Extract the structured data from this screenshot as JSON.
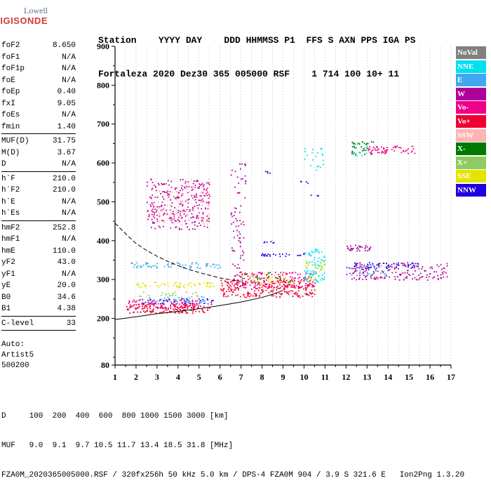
{
  "logo": {
    "line1": "Lowell",
    "line2": "DIGISONDE"
  },
  "header": {
    "line1": "Station    YYYY DAY    DDD HHMMSS P1  FFS S AXN PPS IGA PS",
    "line2": "Fortaleza 2020 Dez30 365 005000 RSF    1 714 100 10+ 11"
  },
  "params": {
    "group1": [
      {
        "k": "foF2",
        "v": "8.650"
      },
      {
        "k": "foF1",
        "v": "N/A"
      },
      {
        "k": "foF1p",
        "v": "N/A"
      },
      {
        "k": "foE",
        "v": "N/A"
      },
      {
        "k": "foEp",
        "v": "0.40"
      },
      {
        "k": "fxI",
        "v": "9.05"
      },
      {
        "k": "foEs",
        "v": "N/A"
      },
      {
        "k": "fmin",
        "v": "1.40"
      }
    ],
    "group2": [
      {
        "k": "MUF(D)",
        "v": "31.75"
      },
      {
        "k": "M(D)",
        "v": "3.67"
      },
      {
        "k": "D",
        "v": "N/A"
      }
    ],
    "group3": [
      {
        "k": "h`F",
        "v": "210.0"
      },
      {
        "k": "h`F2",
        "v": "210.0"
      },
      {
        "k": "h`E",
        "v": "N/A"
      },
      {
        "k": "h`Es",
        "v": "N/A"
      }
    ],
    "group4": [
      {
        "k": "hmF2",
        "v": "252.8"
      },
      {
        "k": "hmF1",
        "v": "N/A"
      },
      {
        "k": "hmE",
        "v": "110.0"
      },
      {
        "k": "yF2",
        "v": "43.0"
      },
      {
        "k": "yF1",
        "v": "N/A"
      },
      {
        "k": "yE",
        "v": "20.0"
      },
      {
        "k": "B0",
        "v": "34.6"
      },
      {
        "k": "B1",
        "v": "4.38"
      }
    ],
    "group5": [
      {
        "k": "C-level",
        "v": "33"
      }
    ]
  },
  "auto": {
    "line1": "Auto:",
    "line2": "Artist5",
    "line3": "500200"
  },
  "legend": [
    {
      "label": "NoVal",
      "color": "#808080"
    },
    {
      "label": "NNE",
      "color": "#00e0f0"
    },
    {
      "label": "E",
      "color": "#40a8f0"
    },
    {
      "label": "W",
      "color": "#b0009a"
    },
    {
      "label": "Vo-",
      "color": "#f00088"
    },
    {
      "label": "Vo+",
      "color": "#f00030"
    },
    {
      "label": "SSW",
      "color": "#ffb4b4"
    },
    {
      "label": "X-",
      "color": "#007a00"
    },
    {
      "label": "X+",
      "color": "#8ccc60"
    },
    {
      "label": "SSE",
      "color": "#e4e400"
    },
    {
      "label": "NNW",
      "color": "#2000e0"
    }
  ],
  "footer": {
    "d_line": "D     100  200  400  600  800 1000 1500 3000 [km]",
    "muf_line": "MUF   9.0  9.1  9.7 10.5 11.7 13.4 18.5 31.8 [MHz]",
    "file_line": "FZA0M_2020365005000.RSF / 320fx256h 50 kHz 5.0 km / DPS-4 FZA0M 904 / 3.9 S 321.6 E   Ion2Png 1.3.20"
  },
  "chart_data": {
    "type": "scatter",
    "xlim": [
      1,
      17
    ],
    "ylim": [
      80,
      900
    ],
    "x_ticks": [
      1,
      2,
      3,
      4,
      5,
      6,
      7,
      8,
      9,
      10,
      11,
      12,
      13,
      14,
      15,
      16,
      17
    ],
    "y_ticks": [
      80,
      200,
      300,
      400,
      500,
      600,
      700,
      800,
      900
    ],
    "grid": "on",
    "legend_placement": "right",
    "clusters": [
      {
        "series": "Vo+",
        "x": [
          1.5,
          5.5
        ],
        "y": [
          215,
          240
        ],
        "density": 0.85
      },
      {
        "series": "Vo-",
        "x": [
          1.6,
          5.0
        ],
        "y": [
          225,
          250
        ],
        "density": 0.55
      },
      {
        "series": "NNW",
        "x": [
          2.0,
          6.0
        ],
        "y": [
          238,
          252
        ],
        "density": 0.35
      },
      {
        "series": "E",
        "x": [
          2.6,
          5.3
        ],
        "y": [
          240,
          258
        ],
        "density": 0.45
      },
      {
        "series": "SSE",
        "x": [
          2.0,
          5.8
        ],
        "y": [
          280,
          295
        ],
        "density": 0.55
      },
      {
        "series": "E",
        "x": [
          1.7,
          6.0
        ],
        "y": [
          330,
          345
        ],
        "density": 0.6
      },
      {
        "series": "X+",
        "x": [
          2.0,
          5.0
        ],
        "y": [
          255,
          270
        ],
        "density": 0.3
      },
      {
        "series": "Vo+",
        "x": [
          6.0,
          10.5
        ],
        "y": [
          255,
          300
        ],
        "density": 0.7
      },
      {
        "series": "Vo-",
        "x": [
          6.5,
          10.5
        ],
        "y": [
          280,
          320
        ],
        "density": 0.5
      },
      {
        "series": "SSE",
        "x": [
          7.0,
          9.5
        ],
        "y": [
          290,
          320
        ],
        "density": 0.25
      },
      {
        "series": "X-",
        "x": [
          7.0,
          9.5
        ],
        "y": [
          290,
          320
        ],
        "density": 0.15
      },
      {
        "series": "NNW",
        "x": [
          7.9,
          10.0
        ],
        "y": [
          361,
          369
        ],
        "density": 0.9
      },
      {
        "series": "NNW",
        "x": [
          8.0,
          8.6
        ],
        "y": [
          395,
          402
        ],
        "density": 0.8
      },
      {
        "series": "W",
        "x": [
          2.5,
          5.5
        ],
        "y": [
          430,
          560
        ],
        "density": 0.25
      },
      {
        "series": "Vo-",
        "x": [
          2.5,
          5.5
        ],
        "y": [
          450,
          550
        ],
        "density": 0.2
      },
      {
        "series": "SSW",
        "x": [
          3.0,
          5.5
        ],
        "y": [
          440,
          560
        ],
        "density": 0.15
      },
      {
        "series": "W",
        "x": [
          6.5,
          7.2
        ],
        "y": [
          300,
          600
        ],
        "density": 0.2
      },
      {
        "series": "NNE",
        "x": [
          10.0,
          11.0
        ],
        "y": [
          295,
          380
        ],
        "density": 0.55
      },
      {
        "series": "SSE",
        "x": [
          10.0,
          11.0
        ],
        "y": [
          300,
          350
        ],
        "density": 0.3
      },
      {
        "series": "W",
        "x": [
          12.0,
          16.8
        ],
        "y": [
          300,
          345
        ],
        "density": 0.45
      },
      {
        "series": "NNW",
        "x": [
          12.2,
          15.5
        ],
        "y": [
          330,
          345
        ],
        "density": 0.5
      },
      {
        "series": "E",
        "x": [
          12.0,
          14.0
        ],
        "y": [
          310,
          340
        ],
        "density": 0.3
      },
      {
        "series": "W",
        "x": [
          12.0,
          13.2
        ],
        "y": [
          375,
          392
        ],
        "density": 0.85
      },
      {
        "series": "Vo-",
        "x": [
          13.0,
          15.3
        ],
        "y": [
          625,
          645
        ],
        "density": 0.7
      },
      {
        "series": "X-",
        "x": [
          12.2,
          13.3
        ],
        "y": [
          620,
          660
        ],
        "density": 0.4
      },
      {
        "series": "NNE",
        "x": [
          12.3,
          13.0
        ],
        "y": [
          620,
          650
        ],
        "density": 0.3
      },
      {
        "series": "NNE",
        "x": [
          10.0,
          10.9
        ],
        "y": [
          580,
          640
        ],
        "density": 0.2
      },
      {
        "series": "NNW",
        "x": [
          9.8,
          10.2
        ],
        "y": [
          548,
          555
        ],
        "density": 0.8
      },
      {
        "series": "NNW",
        "x": [
          8.0,
          8.4
        ],
        "y": [
          575,
          580
        ],
        "density": 0.8
      },
      {
        "series": "NNW",
        "x": [
          10.3,
          10.8
        ],
        "y": [
          516,
          520
        ],
        "density": 0.6
      }
    ],
    "curves": [
      {
        "name": "dashed",
        "style": "dashed",
        "color": "#000000",
        "x": [
          1.0,
          1.5,
          2.0,
          2.5,
          3.0,
          3.5,
          4.0,
          4.5,
          5.0,
          5.5,
          6.0,
          6.5,
          7.0
        ],
        "y": [
          445,
          418,
          393,
          375,
          360,
          347,
          336,
          326,
          318,
          311,
          304,
          299,
          295
        ]
      },
      {
        "name": "solid",
        "style": "solid",
        "color": "#000000",
        "x": [
          1.0,
          2.0,
          3.0,
          4.0,
          5.0,
          6.0,
          7.0,
          8.0,
          8.5,
          9.0
        ],
        "y": [
          197,
          204,
          212,
          218,
          225,
          233,
          242,
          254,
          262,
          272
        ]
      }
    ]
  }
}
